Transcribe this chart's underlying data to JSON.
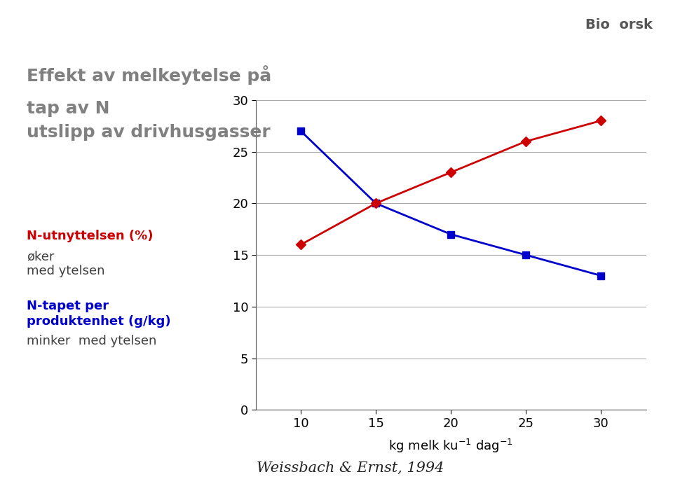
{
  "blue_x": [
    10,
    15,
    20,
    25,
    30
  ],
  "blue_y": [
    27,
    20,
    17,
    15,
    13
  ],
  "red_x": [
    10,
    15,
    20,
    25,
    30
  ],
  "red_y": [
    16,
    20,
    23,
    26,
    28
  ],
  "blue_color": "#0000CC",
  "red_color": "#CC0000",
  "title_line1": "Effekt av melkeytelse på",
  "title_line2": "tap av N",
  "title_line3": "utslipp av drivhusgasser",
  "xlabel": "kg melk ku",
  "xlabel_sup1": "-1",
  "xlabel_mid": " dag",
  "xlabel_sup2": "-1",
  "ylabel": "",
  "xlim": [
    7,
    33
  ],
  "ylim": [
    0,
    30
  ],
  "xticks": [
    10,
    15,
    20,
    25,
    30
  ],
  "yticks": [
    0,
    5,
    10,
    15,
    20,
    25,
    30
  ],
  "legend_red_bold": "N-utnyttelsen (%)",
  "legend_red_normal": " øker\n med ytelsen",
  "legend_blue_bold": "N-tapet per\n produktenhet (g/kg)\n minker  med ytelsen",
  "citation": "Weissbach & Ernst, 1994",
  "bg_color": "#FFFFFF",
  "title_color": "#808080",
  "highlight_color": "#CCE8F4",
  "header_bg": "#C8D040"
}
